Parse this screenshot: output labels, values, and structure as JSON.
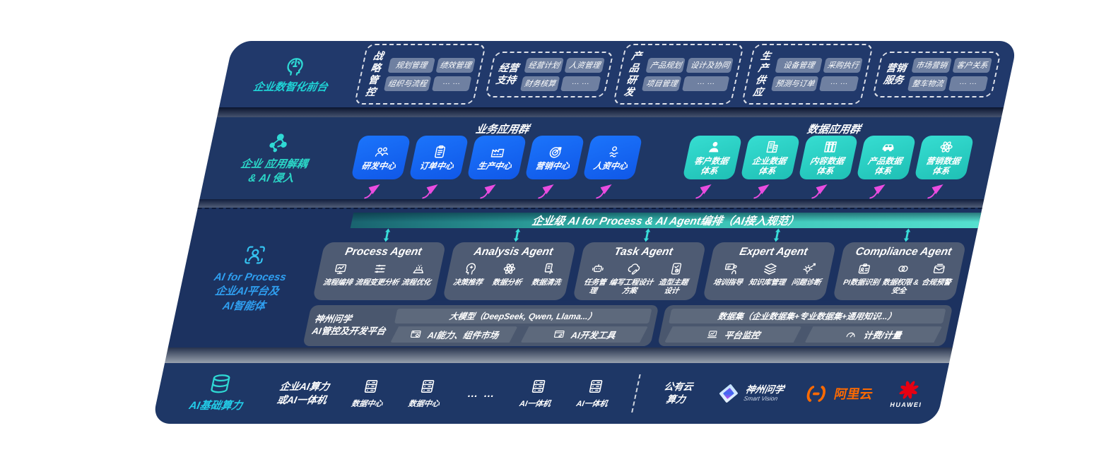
{
  "colors": {
    "band_navy": "#21396b",
    "accent_cyan": "#2fd9d4",
    "accent_teal": "#2bd8c8",
    "accent_blue_label": "#2f9ff0",
    "box_blue": "#1668f2",
    "box_teal": "#2bd2c5",
    "bar_teal_gradient": [
      "#19636f",
      "#55e0cf"
    ],
    "magenta_arrow": "#ea4ce0",
    "cyan_arrow": "#38dcd8",
    "card_slate": "#535e75",
    "alibaba_orange": "#ff6a00",
    "huawei_red": "#e60012"
  },
  "frontdesk": {
    "label": "企业数智化前台",
    "icon": "head-brain-icon",
    "groups": [
      {
        "name": "战略\n管控",
        "chips": [
          "规划管理",
          "绩效管理",
          "组织与流程",
          "… …"
        ]
      },
      {
        "name": "经营\n支持",
        "chips": [
          "经营计划",
          "人资管理",
          "财务核算",
          "… …"
        ]
      },
      {
        "name": "产品\n研发",
        "chips": [
          "产品规划",
          "设计及协同",
          "项目管理",
          "… …"
        ]
      },
      {
        "name": "生产\n供应",
        "chips": [
          "设备管理",
          "采购执行",
          "预测与订单",
          "… …"
        ]
      },
      {
        "name": "营销\n服务",
        "chips": [
          "市场营销",
          "客户关系",
          "整车物流",
          "… …"
        ]
      }
    ]
  },
  "apps": {
    "label": "企业 应用解耦\n& AI 侵入",
    "icon": "molecule-icon",
    "business": {
      "heading": "业务应用群",
      "boxes": [
        {
          "label": "研发中心",
          "icon": "team-icon"
        },
        {
          "label": "订单中心",
          "icon": "clipboard-icon"
        },
        {
          "label": "生产中心",
          "icon": "factory-icon"
        },
        {
          "label": "营销中心",
          "icon": "target-icon"
        },
        {
          "label": "人资中心",
          "icon": "hr-icon"
        }
      ]
    },
    "data": {
      "heading": "数据应用群",
      "boxes": [
        {
          "label": "客户数据\n体系",
          "icon": "person-icon"
        },
        {
          "label": "企业数据\n体系",
          "icon": "building-icon"
        },
        {
          "label": "内容数据\n体系",
          "icon": "books-icon"
        },
        {
          "label": "产品数据\n体系",
          "icon": "car-icon"
        },
        {
          "label": "营销数据\n体系",
          "icon": "atom-icon"
        }
      ]
    }
  },
  "ai_bar": {
    "label": "企业级 AI for Process & AI Agent编排（AI接入规范）"
  },
  "platform": {
    "label": "AI for Process\n企业AI平台及\nAI智能体",
    "icon": "person-scan-icon",
    "agents": [
      {
        "title": "Process Agent",
        "items": [
          {
            "label": "流程编排",
            "icon": "flow-icon"
          },
          {
            "label": "流程变更分析",
            "icon": "sliders-icon"
          },
          {
            "label": "流程优化",
            "icon": "optimize-icon"
          }
        ]
      },
      {
        "title": "Analysis Agent",
        "items": [
          {
            "label": "决策推荐",
            "icon": "decision-icon"
          },
          {
            "label": "数据分析",
            "icon": "atom-icon"
          },
          {
            "label": "数据清洗",
            "icon": "clean-icon"
          }
        ]
      },
      {
        "title": "Task Agent",
        "items": [
          {
            "label": "任务管理",
            "icon": "robot-icon"
          },
          {
            "label": "编写工程设计方案",
            "icon": "cloud-edit-icon"
          },
          {
            "label": "造型主题设计",
            "icon": "design-icon"
          }
        ]
      },
      {
        "title": "Expert Agent",
        "items": [
          {
            "label": "培训指导",
            "icon": "training-icon"
          },
          {
            "label": "知识库管理",
            "icon": "layers-icon"
          },
          {
            "label": "问题诊断",
            "icon": "diagnose-icon"
          }
        ]
      },
      {
        "title": "Compliance Agent",
        "items": [
          {
            "label": "PI数据识别",
            "icon": "idcard-icon"
          },
          {
            "label": "数据权限 &\n安全",
            "icon": "links-icon"
          },
          {
            "label": "合规预警",
            "icon": "mailwarn-icon"
          }
        ]
      }
    ],
    "devplatform": {
      "label": "神州问学\nAI管控及开发平台",
      "left": {
        "top": "大模型（DeepSeek, Qwen, Llama...）",
        "cells": [
          {
            "label": "AI能力、组件市场",
            "icon": "market-icon"
          },
          {
            "label": "AI开发工具",
            "icon": "devtools-icon"
          }
        ]
      },
      "right": {
        "top": "数据集（企业数据集+专业数据集+通用知识...）",
        "cells": [
          {
            "label": "平台监控",
            "icon": "monitor-icon"
          },
          {
            "label": "计费/计量",
            "icon": "gauge-icon"
          }
        ]
      }
    }
  },
  "compute": {
    "label": "AI基础算力",
    "icon": "database-icon",
    "head": "企业AI算力\n或AI一体机",
    "nodes": [
      {
        "label": "数据中心",
        "icon": "server-icon"
      },
      {
        "label": "数据中心",
        "icon": "server-icon"
      },
      {
        "label": "… …",
        "icon": null
      },
      {
        "label": "AI一体机",
        "icon": "server-icon"
      },
      {
        "label": "AI一体机",
        "icon": "server-icon"
      }
    ],
    "cloud": "公有云\n算力",
    "logos": [
      {
        "type": "shenzhou",
        "title": "神州问学",
        "subtitle": "Smart Vision"
      },
      {
        "type": "alibaba",
        "title": "阿里云"
      },
      {
        "type": "huawei",
        "title": "HUAWEI"
      }
    ]
  }
}
